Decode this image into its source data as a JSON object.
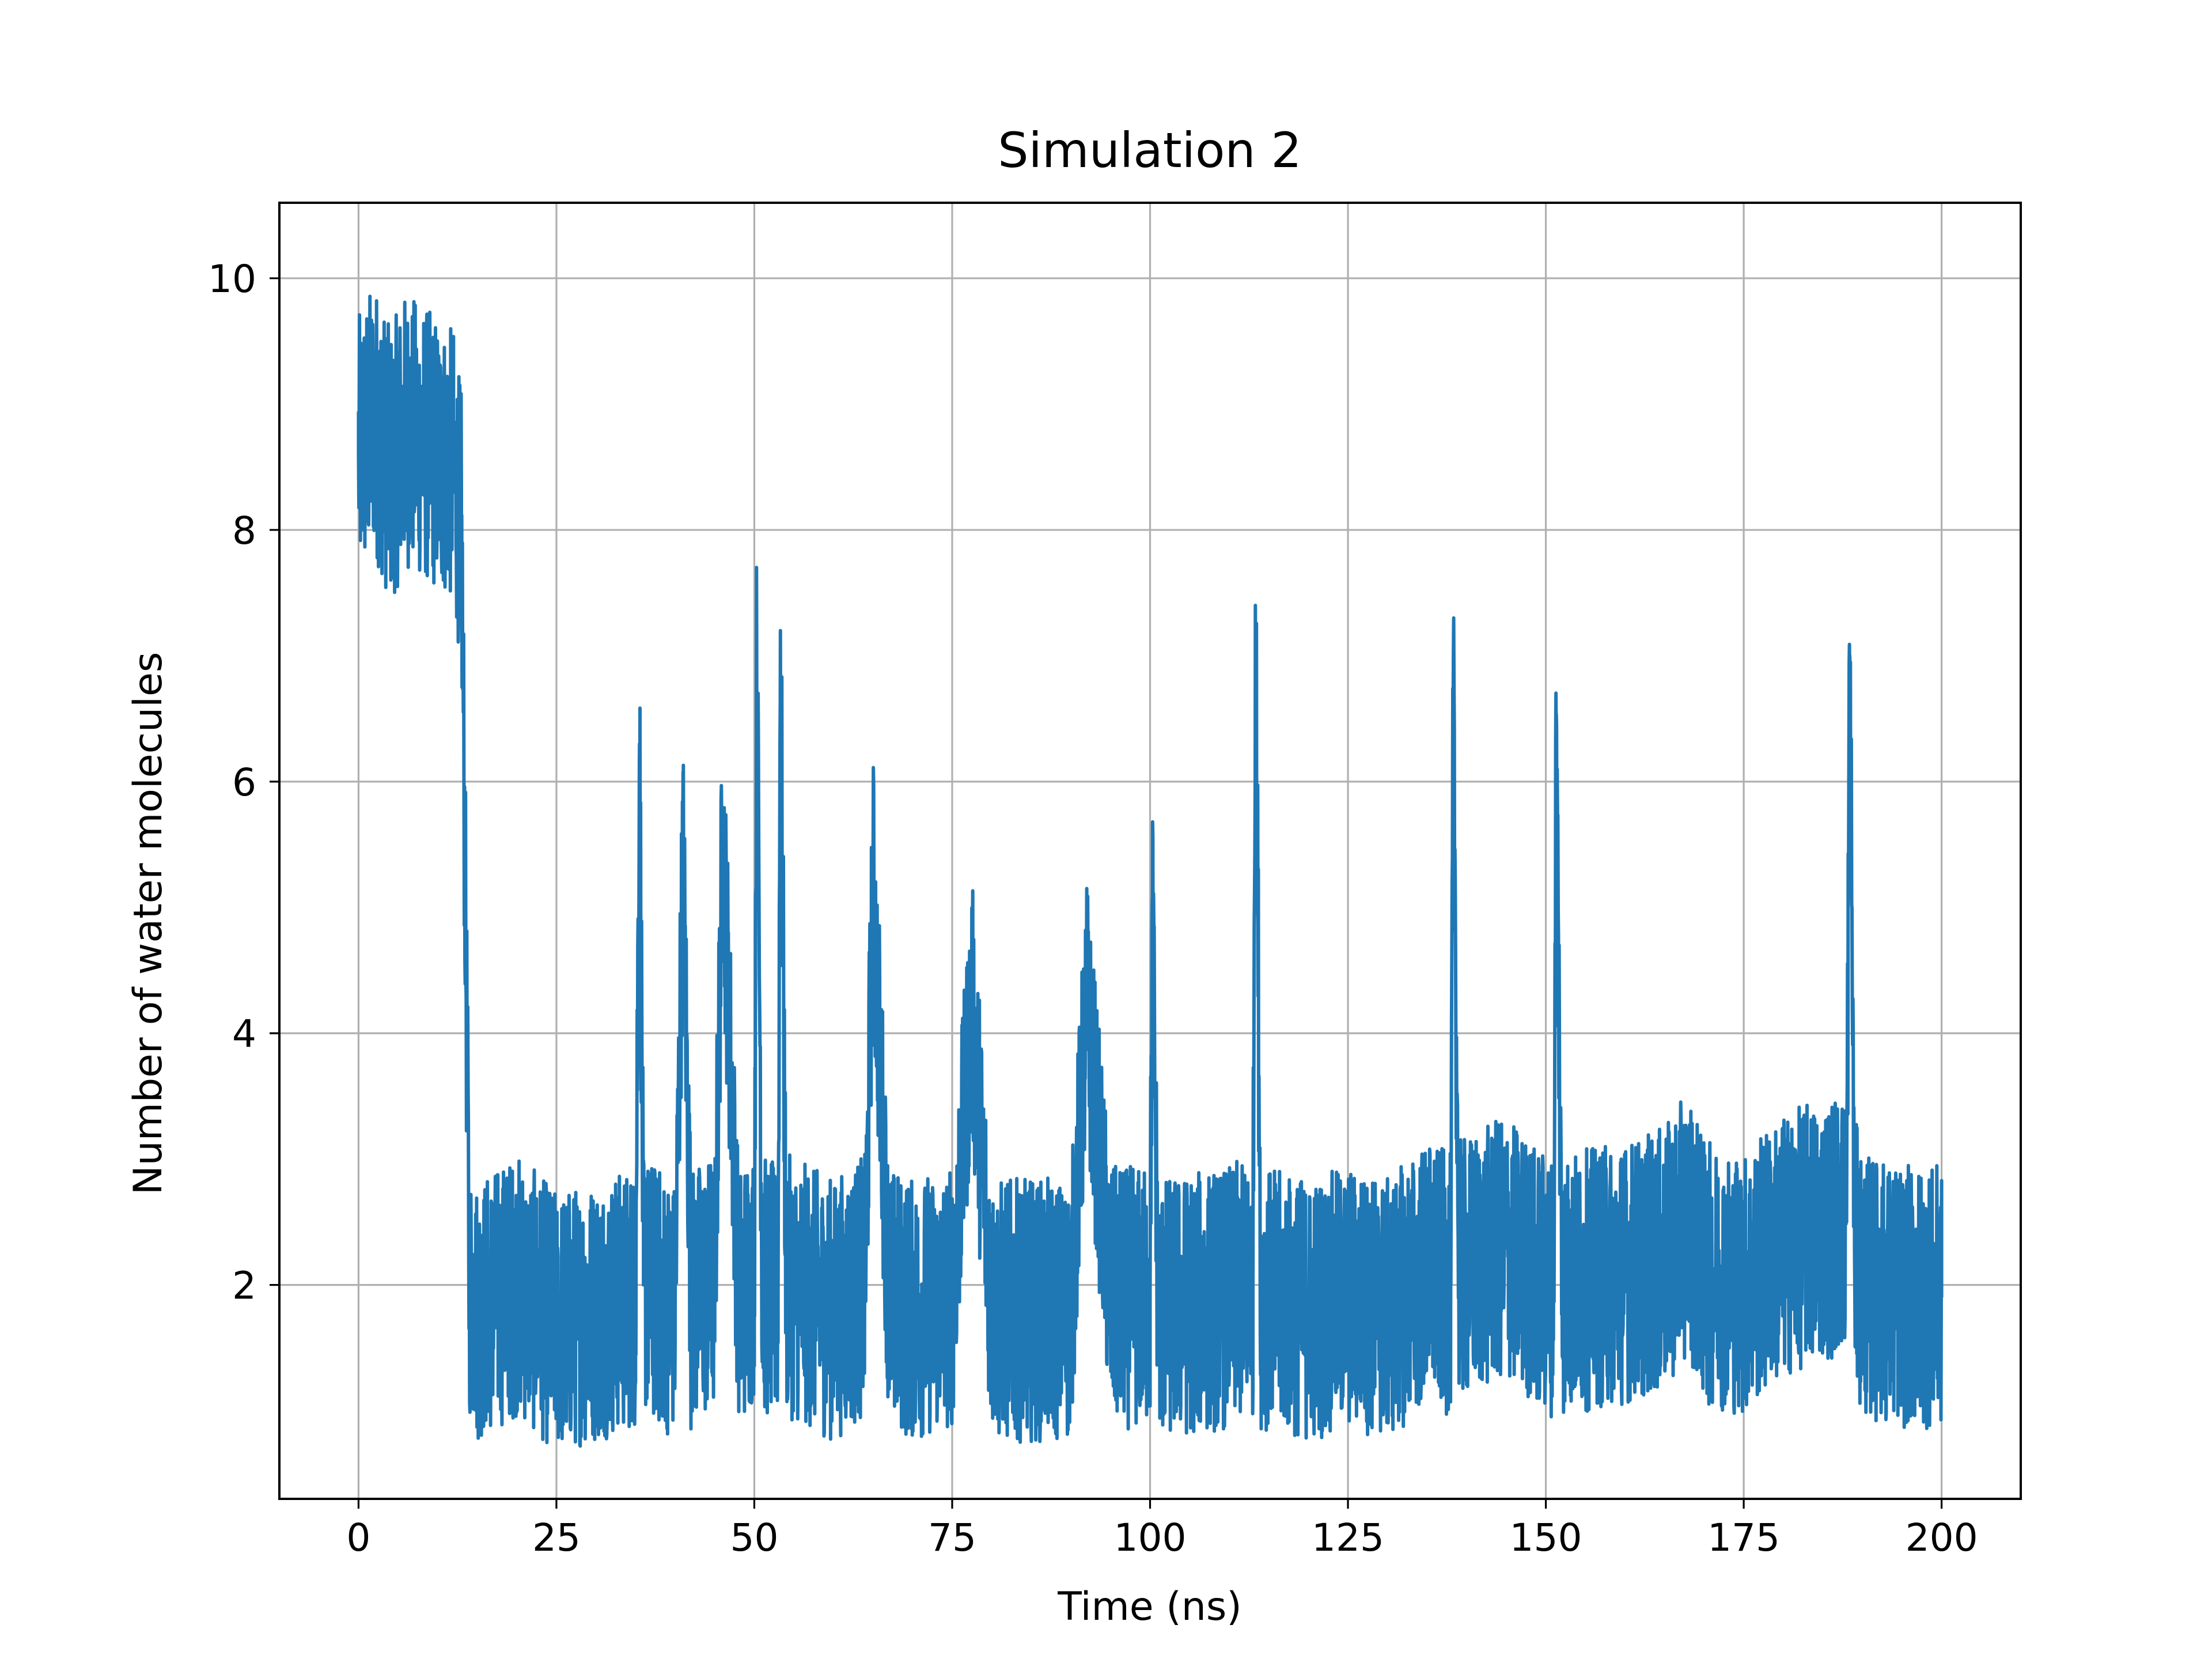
{
  "chart_data": {
    "type": "line",
    "title": "Simulation 2",
    "xlabel": "Time (ns)",
    "ylabel": "Number of water molecules",
    "xlim": [
      -10,
      210
    ],
    "ylim": [
      0.3,
      10.6
    ],
    "xticks": [
      0,
      25,
      50,
      75,
      100,
      125,
      150,
      175,
      200
    ],
    "yticks": [
      2,
      4,
      6,
      8,
      10
    ],
    "grid": true,
    "legend": "none",
    "series": [
      {
        "color": "#1f77b4",
        "x": [
          0,
          2,
          4,
          6,
          8,
          10,
          12,
          13,
          14,
          15,
          20,
          25,
          30,
          35,
          35.5,
          36,
          40,
          41,
          42,
          45,
          46,
          48,
          50,
          50.3,
          51,
          53,
          53.3,
          54,
          60,
          64,
          65,
          67,
          70,
          75,
          77.5,
          80,
          90,
          92,
          95,
          100,
          100.3,
          101,
          110,
          113,
          113.3,
          114,
          120,
          125,
          130,
          135,
          138,
          138.3,
          139,
          145,
          150,
          151,
          151.3,
          152,
          160,
          165,
          168,
          170,
          175,
          178,
          180,
          183,
          188,
          188.4,
          189,
          190,
          195,
          200
        ],
        "y": [
          8.6,
          8.9,
          8.5,
          8.8,
          8.7,
          8.6,
          8.5,
          8.0,
          2.0,
          1.8,
          2.0,
          1.7,
          1.8,
          1.9,
          6.3,
          2.0,
          1.8,
          5.4,
          1.9,
          2.0,
          5.6,
          1.9,
          2.1,
          7.1,
          2.0,
          1.9,
          7.2,
          2.0,
          1.8,
          2.0,
          5.2,
          1.9,
          1.8,
          1.9,
          4.2,
          1.8,
          1.8,
          4.2,
          1.9,
          1.9,
          5.0,
          1.8,
          1.9,
          2.0,
          7.4,
          1.9,
          1.8,
          1.9,
          1.8,
          2.1,
          2.0,
          6.7,
          2.1,
          2.3,
          2.0,
          2.0,
          6.5,
          2.0,
          2.1,
          2.2,
          2.5,
          2.1,
          2.0,
          2.2,
          2.3,
          2.4,
          2.5,
          7.0,
          2.3,
          2.0,
          1.9,
          1.9
        ]
      }
    ]
  }
}
